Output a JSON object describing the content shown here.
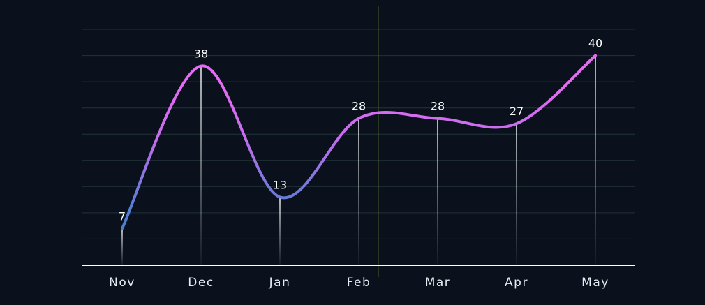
{
  "chart_data": {
    "type": "line",
    "smooth": true,
    "categories": [
      "Nov",
      "Dec",
      "Jan",
      "Feb",
      "Mar",
      "Apr",
      "May"
    ],
    "series": [
      {
        "values": [
          7,
          38,
          13,
          28,
          28,
          27,
          40
        ]
      }
    ],
    "ylim": [
      0,
      45
    ],
    "grid": true,
    "gridlines": 9,
    "colors": {
      "background": "#0a111d",
      "grid": "#233238",
      "line_low": "#4f7fd2",
      "line_high": "#e56bf2",
      "drop_line": "#ffffff",
      "text": "#ffffff"
    }
  }
}
